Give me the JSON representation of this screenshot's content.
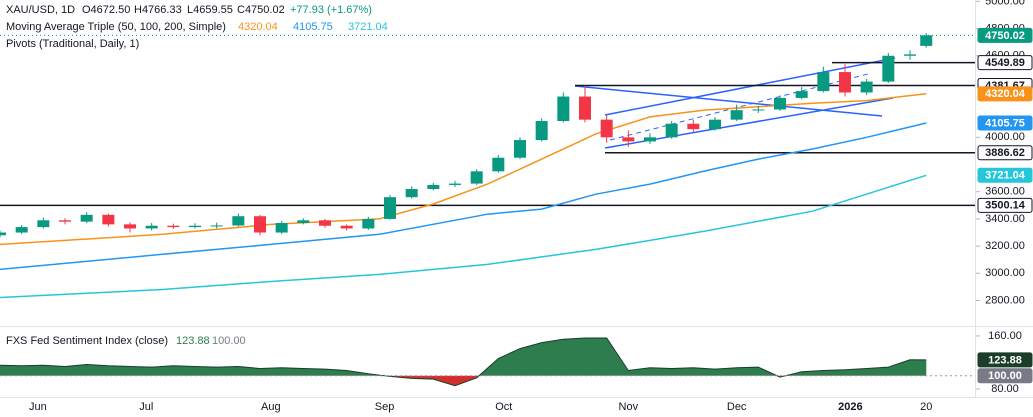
{
  "chart_data": [
    {
      "type": "candlestick",
      "header": {
        "symbol": "XAU/USD, 1D",
        "open": "O4672.50",
        "high": "H4766.33",
        "low": "L4659.55",
        "close": "C4750.02",
        "change": "+77.93 (+1.67%)"
      },
      "ma_title": "Moving Average Triple (50, 100, 200, Simple)",
      "pivots_title": "Pivots (Traditional, Daily, 1)",
      "up_color": "#089981",
      "down_color": "#f23645",
      "x": [
        0,
        4,
        8,
        12,
        16,
        20,
        24,
        28,
        32,
        36,
        40,
        44,
        48,
        52,
        56,
        60,
        64,
        68,
        72,
        76,
        80,
        84,
        88,
        92,
        96,
        100,
        104,
        108,
        112,
        116,
        120,
        124,
        128,
        132,
        136,
        140,
        144,
        148,
        152,
        156,
        160,
        164,
        168,
        171
      ],
      "candles": [
        [
          3280,
          3315,
          3265,
          3300
        ],
        [
          3300,
          3355,
          3290,
          3340
        ],
        [
          3340,
          3410,
          3330,
          3390
        ],
        [
          3390,
          3405,
          3360,
          3380
        ],
        [
          3380,
          3450,
          3370,
          3430
        ],
        [
          3430,
          3440,
          3345,
          3360
        ],
        [
          3360,
          3375,
          3300,
          3330
        ],
        [
          3330,
          3370,
          3315,
          3350
        ],
        [
          3350,
          3365,
          3325,
          3340
        ],
        [
          3340,
          3368,
          3330,
          3350
        ],
        [
          3350,
          3372,
          3330,
          3352
        ],
        [
          3352,
          3440,
          3345,
          3420
        ],
        [
          3420,
          3430,
          3280,
          3300
        ],
        [
          3300,
          3385,
          3290,
          3370
        ],
        [
          3370,
          3405,
          3360,
          3390
        ],
        [
          3390,
          3400,
          3335,
          3350
        ],
        [
          3350,
          3360,
          3315,
          3330
        ],
        [
          3330,
          3415,
          3320,
          3400
        ],
        [
          3400,
          3575,
          3395,
          3560
        ],
        [
          3560,
          3640,
          3550,
          3620
        ],
        [
          3620,
          3665,
          3610,
          3650
        ],
        [
          3650,
          3680,
          3635,
          3660
        ],
        [
          3660,
          3765,
          3650,
          3750
        ],
        [
          3750,
          3870,
          3740,
          3850
        ],
        [
          3850,
          4000,
          3840,
          3980
        ],
        [
          3980,
          4140,
          3970,
          4120
        ],
        [
          4120,
          4330,
          4110,
          4300
        ],
        [
          4300,
          4380,
          4110,
          4130
        ],
        [
          4130,
          4160,
          3960,
          4000
        ],
        [
          4000,
          4050,
          3930,
          3970
        ],
        [
          3970,
          4030,
          3950,
          4000
        ],
        [
          4000,
          4120,
          3990,
          4100
        ],
        [
          4100,
          4130,
          4040,
          4060
        ],
        [
          4060,
          4150,
          4050,
          4130
        ],
        [
          4130,
          4240,
          4120,
          4200
        ],
        [
          4200,
          4230,
          4180,
          4205
        ],
        [
          4205,
          4310,
          4195,
          4290
        ],
        [
          4290,
          4370,
          4280,
          4340
        ],
        [
          4340,
          4520,
          4330,
          4480
        ],
        [
          4480,
          4540,
          4300,
          4330
        ],
        [
          4330,
          4430,
          4310,
          4410
        ],
        [
          4410,
          4620,
          4400,
          4600
        ],
        [
          4600,
          4640,
          4570,
          4610
        ],
        [
          4672.5,
          4766.33,
          4659.55,
          4750.02
        ]
      ],
      "xlim": [
        0,
        180
      ],
      "xticks": [
        {
          "value": 7,
          "label": "Jun"
        },
        {
          "value": 27,
          "label": "Jul"
        },
        {
          "value": 50,
          "label": "Aug"
        },
        {
          "value": 71,
          "label": "Sep"
        },
        {
          "value": 93,
          "label": "Oct"
        },
        {
          "value": 116,
          "label": "Nov"
        },
        {
          "value": 136,
          "label": "Dec"
        },
        {
          "value": 157,
          "label": "2026"
        },
        {
          "value": 171,
          "label": "20"
        }
      ],
      "ylim": [
        2620,
        5010
      ],
      "yticks": [
        {
          "value": 5000,
          "label": "5000.00"
        },
        {
          "value": 4800,
          "label": "4800.00"
        },
        {
          "value": 4600,
          "label": "4600.00"
        },
        {
          "value": 4000,
          "label": "4000.00"
        },
        {
          "value": 3600,
          "label": "3600.00"
        },
        {
          "value": 3400,
          "label": "3400.00"
        },
        {
          "value": 3200,
          "label": "3200.00"
        },
        {
          "value": 3000,
          "label": "3000.00"
        },
        {
          "value": 2800,
          "label": "2800.00"
        }
      ],
      "moving_averages": [
        {
          "color": "#f7931a",
          "x": [
            0,
            30,
            50,
            70,
            80,
            90,
            100,
            110,
            120,
            130,
            140,
            150,
            160,
            171
          ],
          "values": [
            3213,
            3287,
            3360,
            3400,
            3510,
            3656,
            3840,
            4025,
            4150,
            4200,
            4225,
            4250,
            4270,
            4320.04
          ]
        },
        {
          "color": "#2196f3",
          "x": [
            0,
            30,
            50,
            70,
            90,
            100,
            110,
            120,
            130,
            140,
            150,
            160,
            171
          ],
          "values": [
            3029,
            3140,
            3213,
            3287,
            3435,
            3472,
            3582,
            3656,
            3752,
            3840,
            3914,
            4000,
            4105.75
          ]
        },
        {
          "color": "#26c6da",
          "x": [
            0,
            30,
            50,
            70,
            90,
            110,
            130,
            150,
            171
          ],
          "values": [
            2822,
            2881,
            2940,
            2992,
            3066,
            3176,
            3309,
            3457,
            3721.04
          ]
        }
      ],
      "pivots": [
        4549.89,
        4381.67,
        3886.62,
        3500.14
      ],
      "pivot_color": "#131722"
    },
    {
      "type": "area",
      "title": "FXS Fed Sentiment Index (close)",
      "up_color": "#2e7d4f",
      "down_color": "#d32f2f",
      "line_color": "#1b3d2a",
      "x": [
        0,
        4,
        8,
        12,
        16,
        20,
        24,
        28,
        32,
        36,
        40,
        44,
        48,
        52,
        56,
        60,
        64,
        68,
        72,
        76,
        80,
        84,
        88,
        92,
        96,
        100,
        104,
        108,
        112,
        116,
        120,
        124,
        128,
        132,
        136,
        140,
        144,
        148,
        152,
        156,
        160,
        164,
        168,
        171
      ],
      "values": [
        116,
        115,
        116,
        114,
        117,
        115,
        114,
        113,
        115,
        114,
        113,
        114,
        111,
        112,
        111,
        110,
        108,
        103,
        99,
        96,
        95,
        85,
        97,
        126,
        141,
        150,
        155,
        157,
        157,
        108,
        112,
        111,
        112,
        110,
        112,
        113,
        98,
        106,
        108,
        109,
        111,
        113,
        124,
        123.88
      ],
      "baseline": {
        "value": 100,
        "label": "100.00"
      },
      "ylim": [
        68,
        172
      ],
      "yticks": [
        {
          "value": 160,
          "label": "160.00"
        },
        {
          "value": 80,
          "label": "80.00"
        }
      ]
    }
  ]
}
